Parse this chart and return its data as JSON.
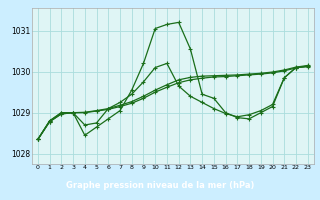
{
  "background_color": "#cceeff",
  "plot_bg_color": "#dff5f5",
  "grid_color": "#aadddd",
  "line_color": "#1a6e1a",
  "title": "Graphe pression niveau de la mer (hPa)",
  "title_bg": "#2a6e2a",
  "title_fg": "#ffffff",
  "xlim": [
    -0.5,
    23.5
  ],
  "ylim": [
    1027.75,
    1031.55
  ],
  "yticks": [
    1028,
    1029,
    1030,
    1031
  ],
  "xticks": [
    0,
    1,
    2,
    3,
    4,
    5,
    6,
    7,
    8,
    9,
    10,
    11,
    12,
    13,
    14,
    15,
    16,
    17,
    18,
    19,
    20,
    21,
    22,
    23
  ],
  "s1": [
    1028.35,
    1028.8,
    1029.0,
    1029.0,
    1028.45,
    1028.65,
    1028.85,
    1029.05,
    1029.55,
    1030.2,
    1031.05,
    1031.15,
    1031.2,
    1030.55,
    1029.45,
    1029.35,
    1029.0,
    1028.88,
    1028.85,
    1029.0,
    1029.15,
    1029.85,
    1030.1,
    1030.12
  ],
  "s2": [
    1028.35,
    1028.8,
    1029.0,
    1029.0,
    1028.7,
    1028.75,
    1029.1,
    1029.25,
    1029.45,
    1029.75,
    1030.1,
    1030.2,
    1029.65,
    1029.4,
    1029.25,
    1029.1,
    1028.98,
    1028.9,
    1028.95,
    1029.05,
    1029.2,
    1029.85,
    1030.1,
    1030.13
  ],
  "s3": [
    1028.35,
    1028.78,
    1028.97,
    1029.0,
    1029.0,
    1029.04,
    1029.08,
    1029.15,
    1029.23,
    1029.35,
    1029.5,
    1029.62,
    1029.73,
    1029.8,
    1029.84,
    1029.87,
    1029.88,
    1029.9,
    1029.92,
    1029.94,
    1029.97,
    1030.02,
    1030.09,
    1030.14
  ],
  "s4": [
    1028.35,
    1028.78,
    1028.97,
    1029.0,
    1029.01,
    1029.05,
    1029.1,
    1029.18,
    1029.27,
    1029.4,
    1029.55,
    1029.68,
    1029.8,
    1029.86,
    1029.89,
    1029.9,
    1029.91,
    1029.92,
    1029.94,
    1029.96,
    1029.99,
    1030.04,
    1030.11,
    1030.15
  ],
  "linewidth": 0.9,
  "markersize": 3.5,
  "marker": "+"
}
